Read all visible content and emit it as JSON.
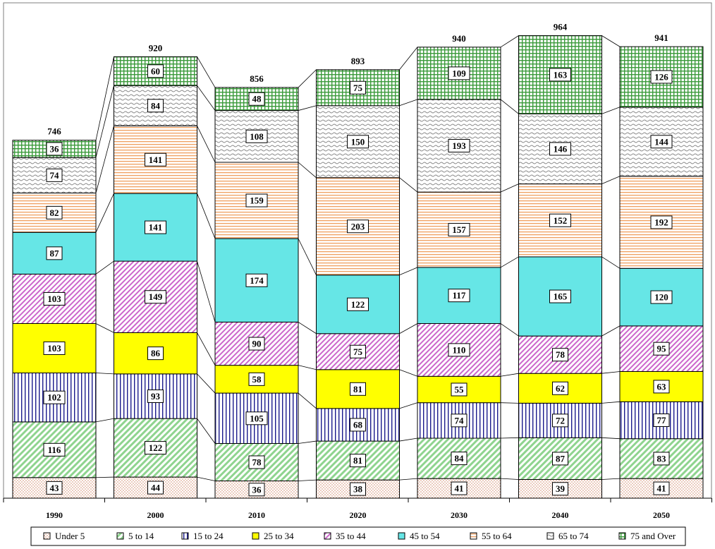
{
  "chart_data": {
    "type": "bar",
    "stacked": true,
    "title": "",
    "xlabel": "",
    "ylabel": "",
    "categories": [
      "1990",
      "2000",
      "2010",
      "2020",
      "2030",
      "2040",
      "2050"
    ],
    "totals": [
      746,
      920,
      856,
      893,
      940,
      964,
      941
    ],
    "ylim": [
      0,
      1000
    ],
    "grid": false,
    "legend_position": "bottom",
    "series": [
      {
        "name": "Under 5",
        "color": "#f4c6b4",
        "pattern": "dots",
        "values": [
          43,
          44,
          36,
          38,
          41,
          39,
          41
        ]
      },
      {
        "name": "5 to 14",
        "color": "#9fdc9f",
        "pattern": "diagonal",
        "values": [
          116,
          122,
          78,
          81,
          84,
          87,
          83
        ]
      },
      {
        "name": "15 to 24",
        "color": "#1a1a8c",
        "pattern": "vertical",
        "values": [
          102,
          93,
          105,
          68,
          74,
          72,
          77
        ]
      },
      {
        "name": "25 to 34",
        "color": "#ffff00",
        "pattern": "solid",
        "values": [
          103,
          86,
          58,
          81,
          55,
          62,
          63
        ]
      },
      {
        "name": "35 to 44",
        "color": "#cc66cc",
        "pattern": "diagonal-dense",
        "values": [
          103,
          149,
          90,
          75,
          110,
          78,
          95
        ]
      },
      {
        "name": "45 to 54",
        "color": "#66e6e6",
        "pattern": "solid",
        "values": [
          87,
          141,
          174,
          122,
          117,
          165,
          120
        ]
      },
      {
        "name": "55 to 64",
        "color": "#f0a060",
        "pattern": "horizontal",
        "values": [
          82,
          141,
          159,
          203,
          157,
          152,
          192
        ]
      },
      {
        "name": "65 to 74",
        "color": "#9a9a9a",
        "pattern": "wave",
        "values": [
          74,
          84,
          108,
          150,
          193,
          146,
          144
        ]
      },
      {
        "name": "75 and Over",
        "color": "#3a9a3a",
        "pattern": "grid",
        "values": [
          36,
          60,
          48,
          75,
          109,
          163,
          126
        ]
      }
    ]
  }
}
